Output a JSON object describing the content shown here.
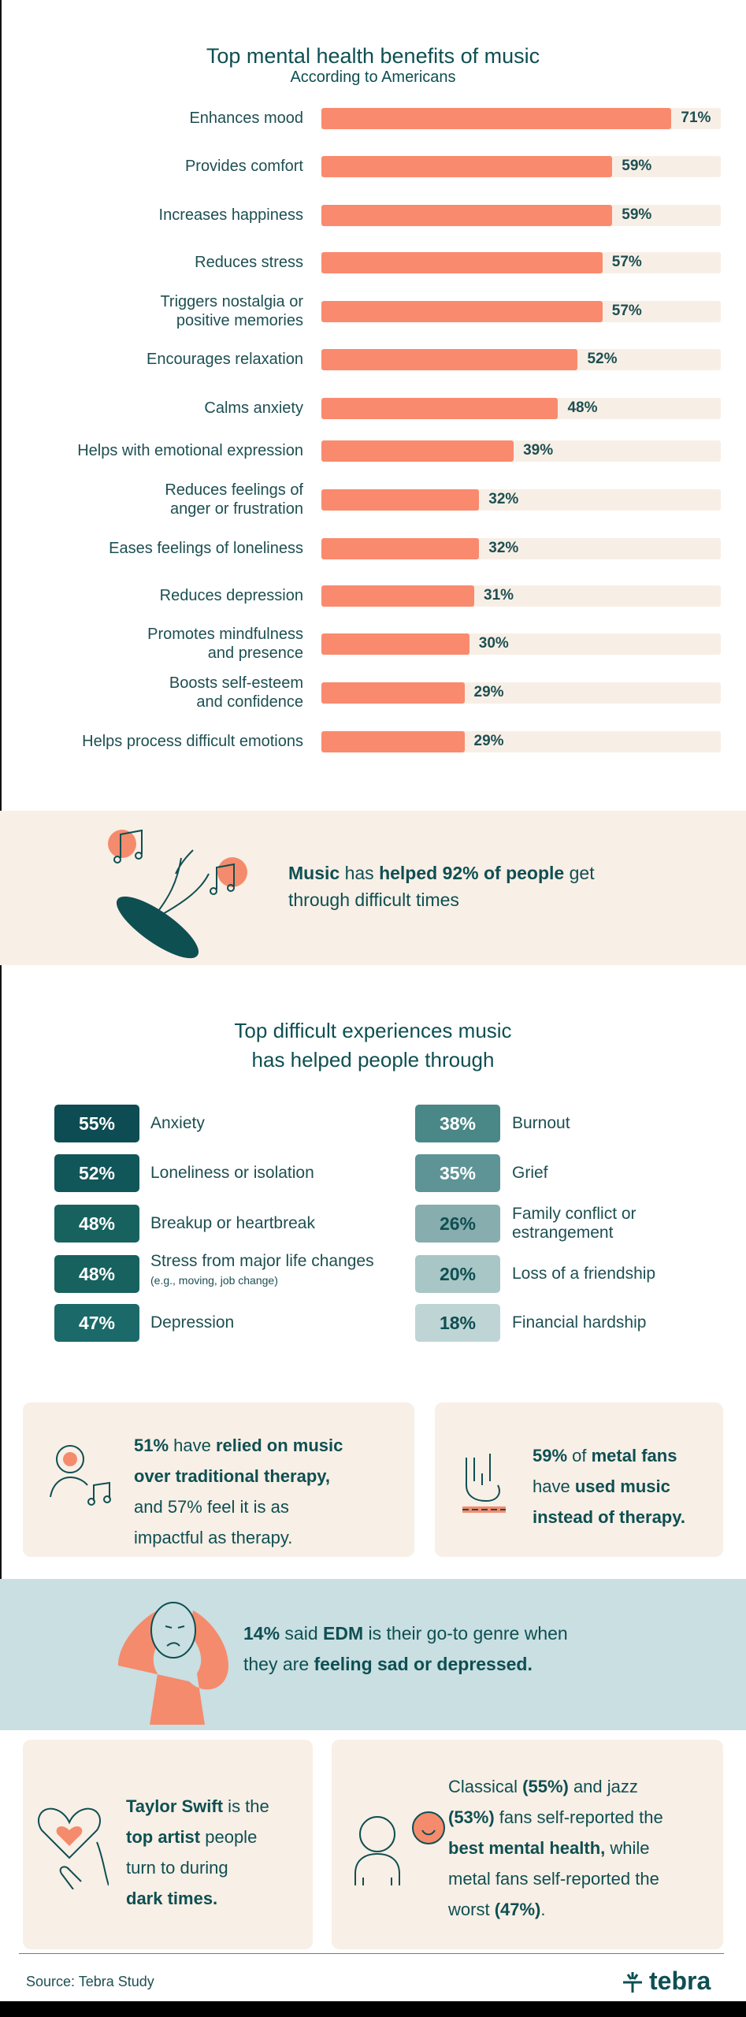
{
  "chart_data": {
    "type": "bar",
    "orientation": "horizontal",
    "title": "Top mental health benefits of music",
    "subtitle": "According to Americans",
    "categories": [
      "Enhances mood",
      "Provides comfort",
      "Increases happiness",
      "Reduces stress",
      "Triggers nostalgia or positive memories",
      "Encourages relaxation",
      "Calms anxiety",
      "Helps with emotional expression",
      "Reduces feelings of anger or frustration",
      "Eases feelings of loneliness",
      "Reduces depression",
      "Promotes mindfulness and presence",
      "Boosts self-esteem and confidence",
      "Helps process difficult emotions"
    ],
    "values": [
      71,
      59,
      59,
      57,
      57,
      52,
      48,
      39,
      32,
      32,
      31,
      30,
      29,
      29
    ],
    "value_labels": [
      "71%",
      "59%",
      "59%",
      "57%",
      "57%",
      "52%",
      "48%",
      "39%",
      "32%",
      "32%",
      "31%",
      "30%",
      "29%",
      "29%"
    ],
    "xlim": [
      0,
      81
    ],
    "colors": {
      "bar": "#fa8a6e",
      "track": "#f7efe6"
    }
  },
  "banner1": {
    "s0": "Music",
    "s1": " has ",
    "s2": "helped 92% of people",
    "s3": " get",
    "s4": "through difficult times"
  },
  "section2": {
    "title1": "Top difficult experiences music",
    "title2": "has helped people through",
    "left": [
      {
        "pct": "55%",
        "label": "Anxiety",
        "color": "#0d4c52"
      },
      {
        "pct": "52%",
        "label": "Loneliness or isolation",
        "color": "#115659"
      },
      {
        "pct": "48%",
        "label": "Breakup or heartbreak",
        "color": "#17625f"
      },
      {
        "pct": "48%",
        "label": "Stress from major life changes",
        "note": "(e.g., moving, job change)",
        "color": "#17625f"
      },
      {
        "pct": "47%",
        "label": "Depression",
        "color": "#1b6a69"
      }
    ],
    "right": [
      {
        "pct": "38%",
        "label": "Burnout",
        "color": "#4a8787"
      },
      {
        "pct": "35%",
        "label": "Grief",
        "color": "#5e9495"
      },
      {
        "pct": "26%",
        "label": "Family conflict or estrangement",
        "color": "#87adae"
      },
      {
        "pct": "20%",
        "label": "Loss of a friendship",
        "color": "#a8c6c6"
      },
      {
        "pct": "18%",
        "label": "Financial hardship",
        "color": "#bfd5d5"
      }
    ]
  },
  "card1": {
    "s0": "51%",
    "s1": " have ",
    "s2": "relied on music",
    "s3": "over traditional therapy,",
    "s4": "and 57% feel it is as",
    "s5": "impactful as therapy."
  },
  "card2": {
    "s0": "59%",
    "s1": " of ",
    "s2": "metal fans",
    "s3": "have ",
    "s4": "used music",
    "s5": "instead of therapy."
  },
  "edm": {
    "s0": "14%",
    "s1": " said ",
    "s2": "EDM",
    "s3": " is their go-to genre when",
    "s4": "they are ",
    "s5": "feeling sad or depressed."
  },
  "card3": {
    "s0": "Taylor Swift",
    "s1": " is the",
    "s2": "top artist",
    "s3": " people",
    "s4": "turn to during",
    "s5": "dark times."
  },
  "card4": {
    "l1a": "Classical ",
    "l1b": "(55%)",
    "l1c": " and jazz",
    "l2a": "(53%)",
    "l2b": " fans self-reported the",
    "l3a": "best mental health,",
    "l3b": " while",
    "l4": "metal fans self-reported the",
    "l5a": "worst ",
    "l5b": "(47%)",
    "l5c": "."
  },
  "footer": {
    "source": "Source: Tebra Study",
    "logo": "tebra"
  }
}
